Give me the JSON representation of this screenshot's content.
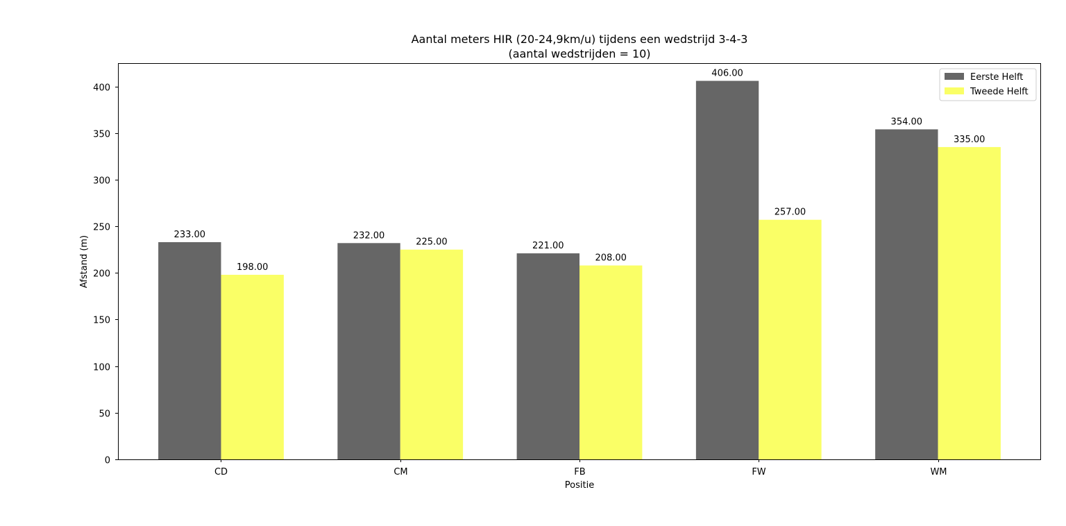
{
  "chart_data": {
    "type": "bar",
    "title_line1": "Aantal meters HIR (20-24,9km/u) tijdens een wedstrijd 3-4-3",
    "title_line2": "(aantal wedstrijden = 10)",
    "xlabel": "Positie",
    "ylabel": "Afstand (m)",
    "categories": [
      "CD",
      "CM",
      "FB",
      "FW",
      "WM"
    ],
    "series": [
      {
        "name": "Eerste Helft",
        "color": "#666666",
        "values": [
          233,
          232,
          221,
          406,
          354
        ]
      },
      {
        "name": "Tweede Helft",
        "color": "#faff66",
        "values": [
          198,
          225,
          208,
          257,
          335
        ]
      }
    ],
    "ylim": [
      0,
      425
    ],
    "yticks": [
      0,
      50,
      100,
      150,
      200,
      250,
      300,
      350,
      400
    ],
    "value_label_decimals": 2,
    "legend_position": "top-right",
    "grid": false
  }
}
